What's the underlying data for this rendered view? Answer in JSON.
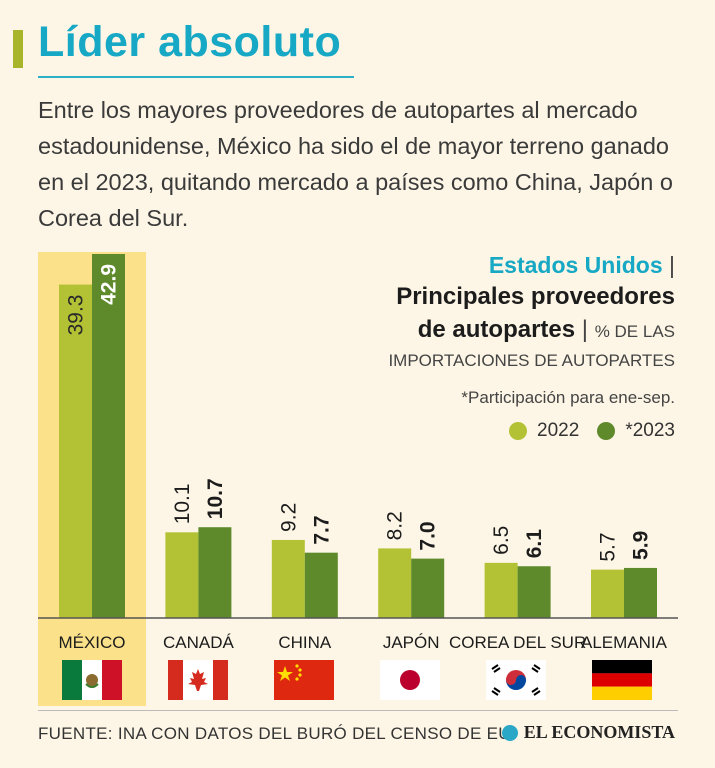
{
  "title": "Líder absoluto",
  "intro": "Entre los mayores proveedores de autopartes al mercado estadounidense, México ha sido el de mayor terreno ganado en el 2023, quitando mercado a países como China, Japón o Corea del Sur.",
  "header": {
    "country": "Estados Unidos",
    "sep": "|",
    "line2": "Principales proveedores",
    "line3": "de autopartes",
    "unit_a": "% DE LAS",
    "unit_b": "IMPORTACIONES DE AUTOPARTES",
    "note": "*Participación para ene-sep."
  },
  "source": "FUENTE: INA CON DATOS DEL BURÓ DEL CENSO DE EU",
  "brand": "EL ECONOMISTA",
  "colors": {
    "2022": "#b3c234",
    "2023": "#5e8a2c",
    "title": "#16a8c4",
    "highlight": "#fbe28a"
  },
  "chart_data": {
    "type": "bar",
    "categories": [
      "MÉXICO",
      "CANADÁ",
      "CHINA",
      "JAPÓN",
      "COREA DEL SUR",
      "ALEMANIA"
    ],
    "series": [
      {
        "name": "2022",
        "values": [
          39.3,
          10.1,
          9.2,
          8.2,
          6.5,
          5.7
        ],
        "labels": [
          "39.3",
          "10.1",
          "9.2",
          "8.2",
          "6.5",
          "5.7"
        ]
      },
      {
        "name": "*2023",
        "values": [
          42.9,
          10.7,
          7.7,
          7.0,
          6.1,
          5.9
        ],
        "labels": [
          "42.9",
          "10.7",
          "7.7",
          "7.0",
          "6.1",
          "5.9"
        ]
      }
    ],
    "legend_position": "top-right",
    "grid": false,
    "flags": [
      "mexico-flag",
      "canada-flag",
      "china-flag",
      "japan-flag",
      "south-korea-flag",
      "germany-flag"
    ]
  }
}
